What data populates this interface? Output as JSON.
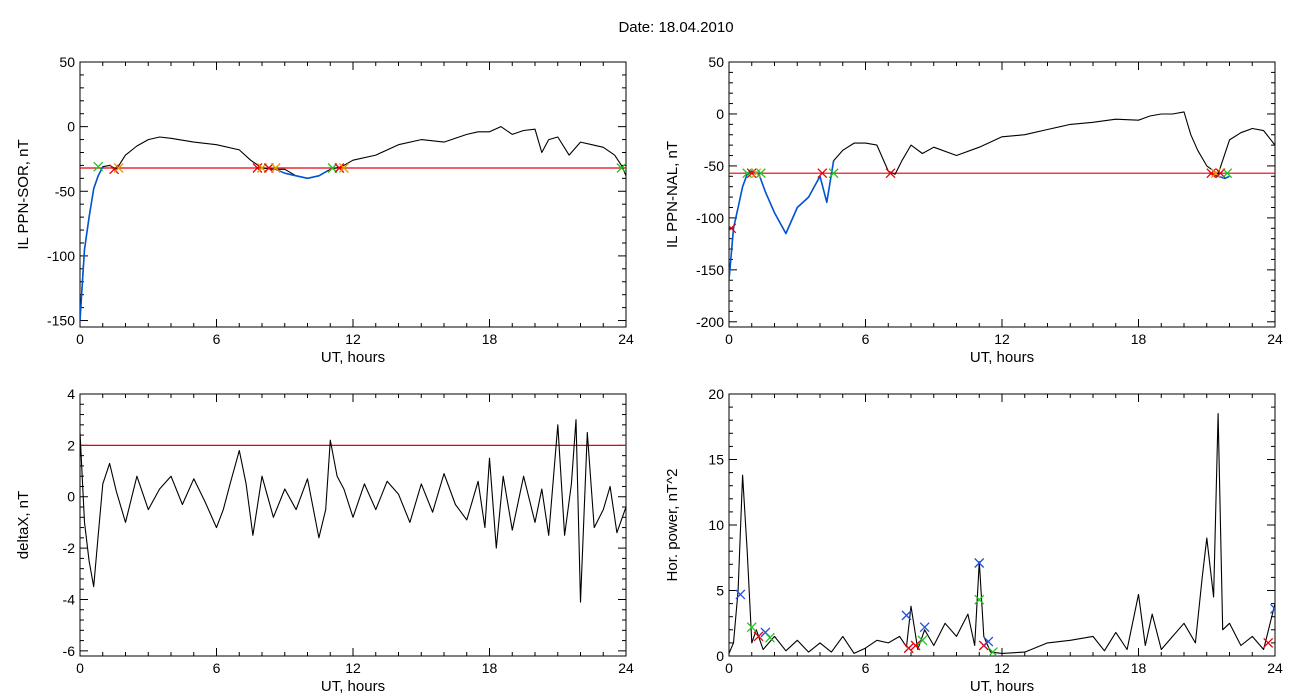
{
  "page_title": "Date:  18.04.2010",
  "colors": {
    "signal": "#000000",
    "fill_segment": "#0055d4",
    "threshold": "#e8000b",
    "marker_red": "#e8000b",
    "marker_green": "#22c322",
    "marker_blue": "#1f4fe0",
    "marker_orange": "#e89a00"
  },
  "chart_data": [
    {
      "type": "line",
      "ylabel": "IL PPN-SOR, nT",
      "xlabel": "UT, hours",
      "xlim": [
        0,
        24
      ],
      "ylim": [
        -155,
        50
      ],
      "xticks": [
        0,
        6,
        12,
        18,
        24
      ],
      "yticks": [
        -150,
        -100,
        -50,
        0,
        50
      ],
      "threshold": -32,
      "series": [
        {
          "role": "signal",
          "x": [
            0,
            0.1,
            0.2,
            0.4,
            0.6,
            0.8,
            1.0,
            1.3,
            1.6,
            2.0,
            2.5,
            3.0,
            3.5,
            4.0,
            5.0,
            6.0,
            7.0,
            7.5,
            8.0,
            8.5,
            9.0,
            9.5,
            10.0,
            10.5,
            11.0,
            11.5,
            12.0,
            13.0,
            14.0,
            15.0,
            16.0,
            17.0,
            17.5,
            18.0,
            18.5,
            19.0,
            19.5,
            20.0,
            20.3,
            20.6,
            21.0,
            21.5,
            22.0,
            22.5,
            23.0,
            23.5,
            23.8,
            24.0
          ],
          "y": [
            -150,
            -120,
            -95,
            -70,
            -48,
            -38,
            -31,
            -30,
            -33,
            -22,
            -15,
            -10,
            -8,
            -9,
            -12,
            -14,
            -18,
            -26,
            -32,
            -33,
            -33,
            -38,
            -40,
            -38,
            -33,
            -31,
            -26,
            -22,
            -14,
            -10,
            -12,
            -6,
            -4,
            -4,
            0,
            -6,
            -3,
            -2,
            -20,
            -10,
            -8,
            -22,
            -12,
            -14,
            -16,
            -22,
            -30,
            -38
          ]
        },
        {
          "role": "fill_segment",
          "x": [
            0,
            0.2,
            0.4,
            0.6,
            0.8,
            1.0
          ],
          "y": [
            -150,
            -95,
            -70,
            -48,
            -38,
            -31
          ]
        },
        {
          "role": "fill_segment",
          "x": [
            8.6,
            9.0,
            9.5,
            10.0,
            10.5,
            10.9
          ],
          "y": [
            -33,
            -36,
            -38,
            -40,
            -38,
            -34
          ]
        }
      ],
      "markers": [
        {
          "x": 0.8,
          "y": -31,
          "color": "green"
        },
        {
          "x": 1.5,
          "y": -33,
          "color": "red"
        },
        {
          "x": 1.7,
          "y": -32,
          "color": "orange"
        },
        {
          "x": 7.8,
          "y": -32,
          "color": "red"
        },
        {
          "x": 8.0,
          "y": -32,
          "color": "orange"
        },
        {
          "x": 8.3,
          "y": -32,
          "color": "red"
        },
        {
          "x": 8.6,
          "y": -32,
          "color": "orange"
        },
        {
          "x": 11.1,
          "y": -32,
          "color": "green"
        },
        {
          "x": 11.4,
          "y": -32,
          "color": "red"
        },
        {
          "x": 11.6,
          "y": -32,
          "color": "orange"
        },
        {
          "x": 23.8,
          "y": -32,
          "color": "green"
        }
      ]
    },
    {
      "type": "line",
      "ylabel": "IL PPN-NAL, nT",
      "xlabel": "UT, hours",
      "xlim": [
        0,
        24
      ],
      "ylim": [
        -205,
        50
      ],
      "xticks": [
        0,
        6,
        12,
        18,
        24
      ],
      "yticks": [
        -200,
        -150,
        -100,
        -50,
        0,
        50
      ],
      "threshold": -57,
      "series": [
        {
          "role": "signal",
          "x": [
            0,
            0.2,
            0.4,
            0.6,
            0.8,
            1.0,
            1.3,
            1.6,
            2.0,
            2.5,
            3.0,
            3.5,
            4.0,
            4.3,
            4.6,
            5.0,
            5.5,
            6.0,
            6.5,
            7.0,
            7.3,
            7.6,
            8.0,
            8.5,
            9.0,
            10.0,
            11.0,
            12.0,
            13.0,
            14.0,
            15.0,
            16.0,
            17.0,
            18.0,
            18.5,
            19.0,
            19.5,
            20.0,
            20.3,
            20.6,
            21.0,
            21.5,
            22.0,
            22.5,
            23.0,
            23.5,
            24.0
          ],
          "y": [
            -160,
            -110,
            -90,
            -70,
            -58,
            -55,
            -57,
            -75,
            -95,
            -115,
            -90,
            -80,
            -60,
            -85,
            -45,
            -35,
            -28,
            -28,
            -30,
            -55,
            -58,
            -45,
            -30,
            -38,
            -32,
            -40,
            -32,
            -22,
            -20,
            -15,
            -10,
            -8,
            -5,
            -6,
            -2,
            0,
            0,
            2,
            -20,
            -35,
            -50,
            -58,
            -25,
            -18,
            -14,
            -16,
            -30
          ]
        },
        {
          "role": "fill_segment",
          "x": [
            0,
            0.2,
            0.4,
            0.6,
            0.8,
            1.0,
            1.3,
            1.6,
            2.0,
            2.5,
            3.0,
            3.5,
            4.0,
            4.3,
            4.6
          ],
          "y": [
            -160,
            -110,
            -90,
            -70,
            -58,
            -55,
            -57,
            -75,
            -95,
            -115,
            -90,
            -80,
            -60,
            -85,
            -45
          ]
        },
        {
          "role": "fill_segment",
          "x": [
            21.2,
            21.5,
            21.8,
            22.0
          ],
          "y": [
            -58,
            -60,
            -62,
            -60
          ]
        }
      ],
      "markers": [
        {
          "x": 0.1,
          "y": -110,
          "color": "red"
        },
        {
          "x": 0.8,
          "y": -57,
          "color": "green"
        },
        {
          "x": 1.0,
          "y": -57,
          "color": "red"
        },
        {
          "x": 1.2,
          "y": -57,
          "color": "orange"
        },
        {
          "x": 1.4,
          "y": -57,
          "color": "green"
        },
        {
          "x": 4.1,
          "y": -57,
          "color": "red"
        },
        {
          "x": 4.6,
          "y": -57,
          "color": "green"
        },
        {
          "x": 7.1,
          "y": -57,
          "color": "red"
        },
        {
          "x": 21.2,
          "y": -57,
          "color": "red"
        },
        {
          "x": 21.4,
          "y": -57,
          "color": "orange"
        },
        {
          "x": 21.6,
          "y": -57,
          "color": "red"
        },
        {
          "x": 21.9,
          "y": -57,
          "color": "green"
        }
      ]
    },
    {
      "type": "line",
      "ylabel": "deltaX, nT",
      "xlabel": "UT, hours",
      "xlim": [
        0,
        24
      ],
      "ylim": [
        -6.2,
        4
      ],
      "xticks": [
        0,
        6,
        12,
        18,
        24
      ],
      "yticks": [
        -6,
        -4,
        -2,
        0,
        2,
        4
      ],
      "threshold": 2,
      "series": [
        {
          "role": "signal",
          "x": [
            0,
            0.2,
            0.4,
            0.6,
            0.8,
            1.0,
            1.3,
            1.6,
            2.0,
            2.5,
            3.0,
            3.5,
            4.0,
            4.5,
            5.0,
            5.5,
            6.0,
            6.3,
            6.6,
            7.0,
            7.3,
            7.6,
            8.0,
            8.5,
            9.0,
            9.5,
            10.0,
            10.5,
            10.8,
            11.0,
            11.3,
            11.6,
            12.0,
            12.5,
            13.0,
            13.5,
            14.0,
            14.5,
            15.0,
            15.5,
            16.0,
            16.5,
            17.0,
            17.5,
            17.8,
            18.0,
            18.3,
            18.6,
            19.0,
            19.5,
            20.0,
            20.3,
            20.6,
            21.0,
            21.3,
            21.6,
            21.8,
            22.0,
            22.3,
            22.6,
            23.0,
            23.3,
            23.6,
            24.0
          ],
          "y": [
            2.5,
            -1.0,
            -2.5,
            -3.5,
            -1.5,
            0.5,
            1.3,
            0.2,
            -1.0,
            0.8,
            -0.5,
            0.3,
            0.8,
            -0.3,
            0.7,
            -0.2,
            -1.2,
            -0.5,
            0.5,
            1.8,
            0.5,
            -1.5,
            0.8,
            -0.8,
            0.3,
            -0.5,
            0.7,
            -1.6,
            -0.5,
            2.2,
            0.8,
            0.3,
            -0.8,
            0.5,
            -0.5,
            0.6,
            0.1,
            -1.0,
            0.5,
            -0.6,
            0.9,
            -0.3,
            -0.9,
            0.6,
            -1.2,
            1.5,
            -2.0,
            0.8,
            -1.3,
            0.8,
            -1.0,
            0.3,
            -1.5,
            2.8,
            -1.5,
            0.5,
            3.0,
            -4.1,
            2.5,
            -1.2,
            -0.5,
            0.4,
            -1.4,
            -0.4
          ]
        }
      ],
      "markers": []
    },
    {
      "type": "line",
      "ylabel": "Hor. power, nT^2",
      "xlabel": "UT, hours",
      "xlim": [
        0,
        24
      ],
      "ylim": [
        0,
        20
      ],
      "xticks": [
        0,
        6,
        12,
        18,
        24
      ],
      "yticks": [
        0,
        5,
        10,
        15,
        20
      ],
      "series": [
        {
          "role": "signal",
          "x": [
            0,
            0.2,
            0.4,
            0.6,
            0.8,
            1.0,
            1.2,
            1.5,
            2.0,
            2.5,
            3.0,
            3.5,
            4.0,
            4.5,
            5.0,
            5.5,
            6.0,
            6.5,
            7.0,
            7.5,
            7.8,
            8.0,
            8.3,
            8.6,
            9.0,
            9.5,
            10.0,
            10.5,
            10.8,
            11.0,
            11.2,
            11.5,
            12.0,
            13.0,
            14.0,
            15.0,
            16.0,
            16.5,
            17.0,
            17.5,
            18.0,
            18.3,
            18.6,
            19.0,
            19.5,
            20.0,
            20.5,
            20.8,
            21.0,
            21.3,
            21.5,
            21.7,
            22.0,
            22.5,
            23.0,
            23.5,
            24.0
          ],
          "y": [
            0.2,
            1.0,
            5.0,
            13.8,
            8.0,
            1.0,
            2.0,
            0.5,
            1.5,
            0.4,
            1.2,
            0.3,
            1.0,
            0.3,
            1.5,
            0.2,
            0.6,
            1.2,
            1.0,
            1.5,
            0.7,
            3.8,
            0.5,
            2.0,
            0.8,
            2.5,
            1.5,
            3.2,
            0.8,
            7.2,
            1.5,
            0.3,
            0.2,
            0.3,
            1.0,
            1.2,
            1.5,
            0.4,
            1.8,
            0.5,
            4.7,
            0.8,
            3.2,
            0.5,
            1.5,
            2.5,
            1.0,
            6.0,
            9.0,
            4.5,
            18.5,
            2.0,
            2.5,
            0.8,
            1.5,
            0.5,
            4.0
          ]
        }
      ],
      "markers": [
        {
          "x": 0.5,
          "y": 4.7,
          "color": "blue"
        },
        {
          "x": 1.0,
          "y": 2.2,
          "color": "green"
        },
        {
          "x": 1.3,
          "y": 1.5,
          "color": "red"
        },
        {
          "x": 1.6,
          "y": 1.8,
          "color": "blue"
        },
        {
          "x": 1.8,
          "y": 1.4,
          "color": "green"
        },
        {
          "x": 7.8,
          "y": 3.1,
          "color": "blue"
        },
        {
          "x": 7.9,
          "y": 0.6,
          "color": "red"
        },
        {
          "x": 8.2,
          "y": 0.8,
          "color": "red"
        },
        {
          "x": 8.5,
          "y": 1.2,
          "color": "green"
        },
        {
          "x": 8.6,
          "y": 2.2,
          "color": "blue"
        },
        {
          "x": 11.0,
          "y": 7.1,
          "color": "blue"
        },
        {
          "x": 11.0,
          "y": 4.3,
          "color": "green"
        },
        {
          "x": 11.2,
          "y": 0.8,
          "color": "red"
        },
        {
          "x": 11.4,
          "y": 1.1,
          "color": "blue"
        },
        {
          "x": 11.6,
          "y": 0.3,
          "color": "green"
        },
        {
          "x": 23.7,
          "y": 1.0,
          "color": "red"
        },
        {
          "x": 24.0,
          "y": 3.6,
          "color": "blue"
        }
      ]
    }
  ]
}
